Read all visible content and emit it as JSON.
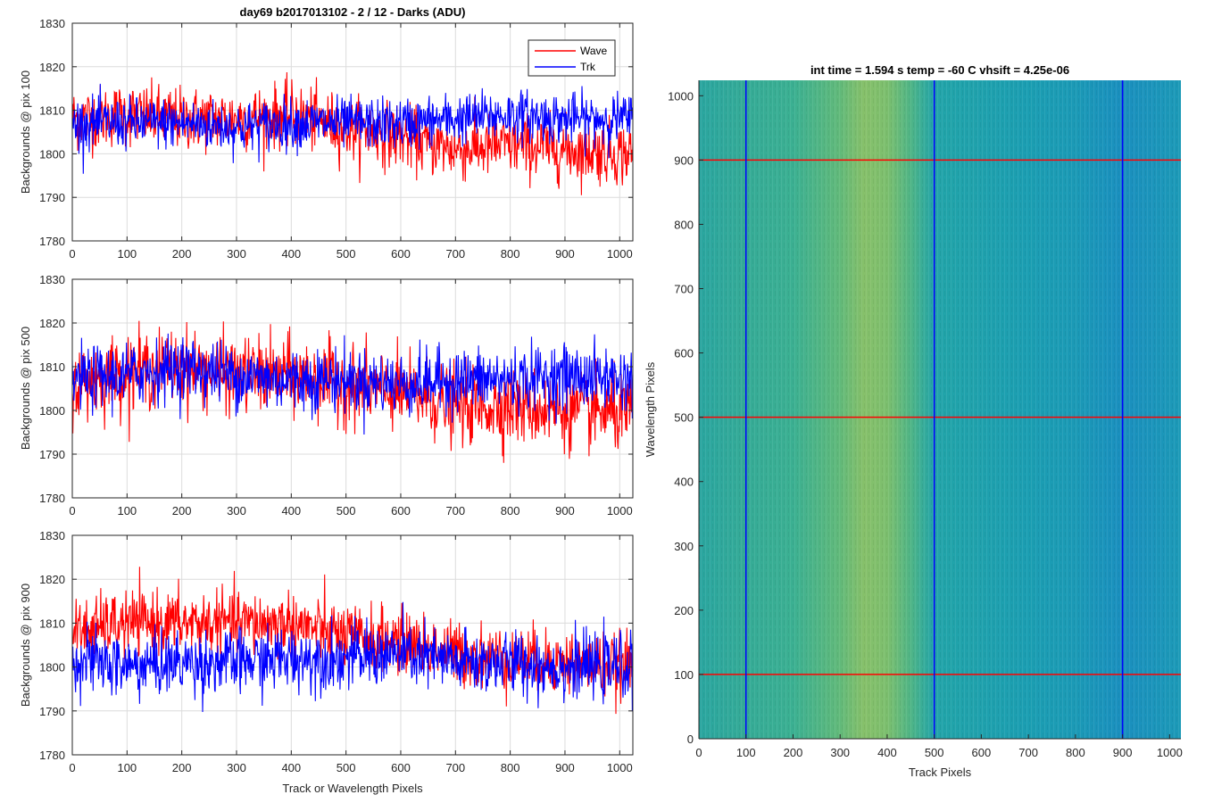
{
  "chart_data": [
    {
      "type": "line",
      "title": "day69 b2017013102 - 2 / 12 - Darks (ADU)",
      "xlabel": "",
      "ylabel": "Backgrounds @ pix 100",
      "xlim": [
        0,
        1024
      ],
      "ylim": [
        1780,
        1830
      ],
      "xticks": [
        0,
        100,
        200,
        300,
        400,
        500,
        600,
        700,
        800,
        900,
        1000
      ],
      "yticks": [
        1780,
        1790,
        1800,
        1810,
        1820,
        1830
      ],
      "grid": true,
      "legend": {
        "placement": "top-right",
        "entries": [
          "Wave",
          "Trk"
        ]
      },
      "series": [
        {
          "name": "Wave",
          "color": "#ff0000",
          "x": [
            0,
            100,
            200,
            300,
            400,
            500,
            600,
            700,
            800,
            900,
            1024
          ],
          "values": [
            1808,
            1809,
            1808,
            1808,
            1809,
            1806,
            1804,
            1801,
            1802,
            1801,
            1800
          ],
          "noise": 5
        },
        {
          "name": "Trk",
          "color": "#0000ff",
          "x": [
            0,
            100,
            200,
            300,
            400,
            500,
            600,
            700,
            800,
            900,
            1024
          ],
          "values": [
            1807,
            1807,
            1807,
            1806,
            1807,
            1807,
            1807,
            1808,
            1809,
            1808,
            1808
          ],
          "noise": 4
        }
      ]
    },
    {
      "type": "line",
      "title": "",
      "xlabel": "",
      "ylabel": "Backgrounds @ pix 500",
      "xlim": [
        0,
        1024
      ],
      "ylim": [
        1780,
        1830
      ],
      "xticks": [
        0,
        100,
        200,
        300,
        400,
        500,
        600,
        700,
        800,
        900,
        1000
      ],
      "yticks": [
        1780,
        1790,
        1800,
        1810,
        1820,
        1830
      ],
      "grid": true,
      "series": [
        {
          "name": "Wave",
          "color": "#ff0000",
          "x": [
            0,
            100,
            200,
            300,
            400,
            500,
            600,
            700,
            800,
            900,
            1024
          ],
          "values": [
            1806,
            1809,
            1810,
            1808,
            1808,
            1806,
            1804,
            1801,
            1801,
            1800,
            1799
          ],
          "noise": 6
        },
        {
          "name": "Trk",
          "color": "#0000ff",
          "x": [
            0,
            100,
            200,
            300,
            400,
            500,
            600,
            700,
            800,
            900,
            1024
          ],
          "values": [
            1807,
            1808,
            1810,
            1808,
            1807,
            1807,
            1806,
            1807,
            1807,
            1808,
            1807
          ],
          "noise": 5
        }
      ]
    },
    {
      "type": "line",
      "title": "",
      "xlabel": "Track or Wavelength Pixels",
      "ylabel": "Backgrounds @ pix 900",
      "xlim": [
        0,
        1024
      ],
      "ylim": [
        1780,
        1830
      ],
      "xticks": [
        0,
        100,
        200,
        300,
        400,
        500,
        600,
        700,
        800,
        900,
        1000
      ],
      "yticks": [
        1780,
        1790,
        1800,
        1810,
        1820,
        1830
      ],
      "grid": true,
      "series": [
        {
          "name": "Wave",
          "color": "#ff0000",
          "x": [
            0,
            100,
            200,
            300,
            400,
            500,
            600,
            700,
            800,
            900,
            1024
          ],
          "values": [
            1808,
            1810,
            1810,
            1810,
            1810,
            1807,
            1806,
            1803,
            1802,
            1801,
            1800
          ],
          "noise": 5
        },
        {
          "name": "Trk",
          "color": "#0000ff",
          "x": [
            0,
            100,
            200,
            300,
            400,
            500,
            600,
            700,
            800,
            900,
            1024
          ],
          "values": [
            1802,
            1800,
            1801,
            1801,
            1802,
            1802,
            1803,
            1801,
            1801,
            1800,
            1800
          ],
          "noise": 5
        }
      ]
    },
    {
      "type": "heatmap",
      "title": "int time = 1.594 s   temp = -60 C   vhsift = 4.25e-06",
      "xlabel": "Track Pixels",
      "ylabel": "Wavelength Pixels",
      "xlim": [
        0,
        1024
      ],
      "ylim": [
        0,
        1024
      ],
      "xticks": [
        0,
        100,
        200,
        300,
        400,
        500,
        600,
        700,
        800,
        900,
        1000
      ],
      "yticks": [
        0,
        100,
        200,
        300,
        400,
        500,
        600,
        700,
        800,
        900,
        1000
      ],
      "column_profile": {
        "x": [
          0,
          100,
          200,
          300,
          350,
          400,
          450,
          500,
          600,
          700,
          800,
          900,
          1024
        ],
        "colors": [
          "#2aa6a0",
          "#35ab97",
          "#3bb092",
          "#62ba7a",
          "#86c06a",
          "#7cbf6e",
          "#4fb587",
          "#22a5a9",
          "#1fa1ad",
          "#1b9eb2",
          "#1b9ab6",
          "#1a8fbf",
          "#1c9ab7"
        ]
      },
      "vertical_lines": {
        "color": "#0000ff",
        "x": [
          100,
          500,
          900
        ]
      },
      "horizontal_lines": {
        "color": "#ff0000",
        "y": [
          100,
          500,
          900
        ]
      }
    }
  ]
}
